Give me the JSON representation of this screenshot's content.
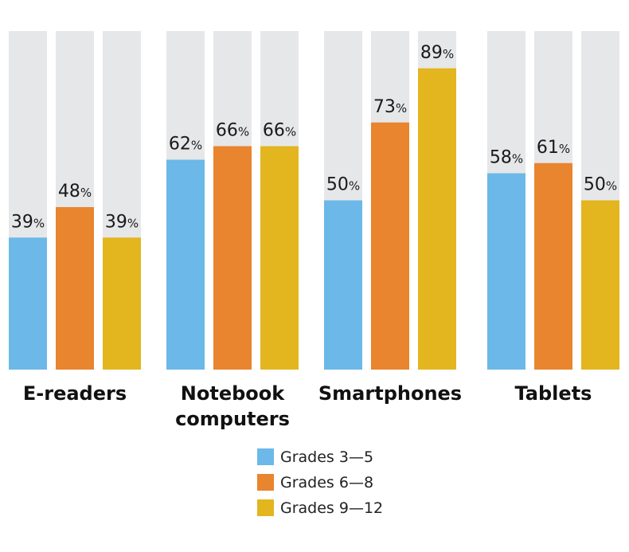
{
  "chart_data": {
    "type": "bar",
    "title": "",
    "xlabel": "",
    "ylabel": "",
    "ylim": [
      0,
      100
    ],
    "grid": false,
    "legend_position": "bottom-center",
    "value_suffix": "%",
    "categories": [
      [
        "E-readers"
      ],
      [
        "Notebook",
        "computers"
      ],
      [
        "Smartphones"
      ],
      [
        "Tablets"
      ]
    ],
    "series": [
      {
        "name": "Grades 3—5",
        "color": "#6cb8e8",
        "values": [
          39,
          62,
          50,
          58
        ]
      },
      {
        "name": "Grades 6—8",
        "color": "#e8852e",
        "values": [
          48,
          66,
          73,
          61
        ]
      },
      {
        "name": "Grades 9—12",
        "color": "#e3b51f",
        "values": [
          39,
          66,
          89,
          50
        ]
      }
    ],
    "background_bar_color": "#e6e7e9"
  }
}
